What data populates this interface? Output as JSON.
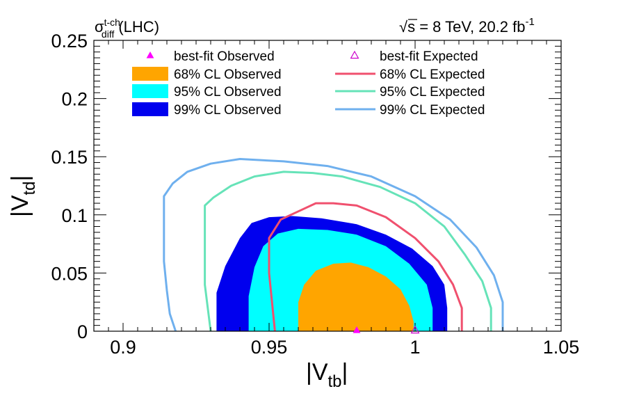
{
  "chart_data": {
    "type": "contour",
    "top_left_label": {
      "sigma": "σ",
      "sup": "t-ch",
      "sub": "diff",
      "rest": "(LHC)"
    },
    "top_right_label": {
      "sqrt": "√",
      "s": "s",
      "rest": " = 8 TeV, 20.2 fb",
      "sup": "-1"
    },
    "xlabel": {
      "main": "|V",
      "sub": "tb",
      "end": "|"
    },
    "ylabel": {
      "main": "|V",
      "sub": "td",
      "end": "|"
    },
    "xlim": [
      0.89,
      1.05
    ],
    "ylim": [
      0,
      0.25
    ],
    "x_ticks": [
      0.9,
      0.95,
      1.0,
      1.05
    ],
    "x_tick_labels": [
      "0.9",
      "0.95",
      "1",
      "1.05"
    ],
    "y_ticks": [
      0,
      0.05,
      0.1,
      0.15,
      0.2,
      0.25
    ],
    "y_tick_labels": [
      "0",
      "0.05",
      "0.1",
      "0.15",
      "0.2",
      "0.25"
    ],
    "grid": false,
    "legend_placement": "top",
    "best_fit_observed": {
      "x": 0.98,
      "y": 0.0
    },
    "best_fit_expected": {
      "x": 1.0,
      "y": 0.0
    },
    "legend": [
      {
        "label": "best-fit Observed",
        "kind": "triangle-filled",
        "color": "#ff00ff"
      },
      {
        "label": "best-fit Expected",
        "kind": "triangle-open",
        "color": "#cc00cc"
      },
      {
        "label": "68% CL Observed",
        "kind": "fill",
        "color": "#ffa500"
      },
      {
        "label": "68% CL Expected",
        "kind": "line",
        "color": "#f0506e"
      },
      {
        "label": "95% CL Observed",
        "kind": "fill",
        "color": "#00ffff"
      },
      {
        "label": "95% CL Expected",
        "kind": "line",
        "color": "#66e3b8"
      },
      {
        "label": "99% CL Observed",
        "kind": "fill",
        "color": "#0000ee"
      },
      {
        "label": "99% CL Expected",
        "kind": "line",
        "color": "#6fb0ee"
      }
    ],
    "regions": [
      {
        "name": "99% CL Observed",
        "color": "#0000ee",
        "points": [
          [
            0.932,
            0
          ],
          [
            0.932,
            0.033
          ],
          [
            0.935,
            0.056
          ],
          [
            0.94,
            0.08
          ],
          [
            0.944,
            0.093
          ],
          [
            0.95,
            0.098
          ],
          [
            0.958,
            0.099
          ],
          [
            0.968,
            0.097
          ],
          [
            0.98,
            0.092
          ],
          [
            0.99,
            0.083
          ],
          [
            0.999,
            0.071
          ],
          [
            1.006,
            0.056
          ],
          [
            1.01,
            0.04
          ],
          [
            1.011,
            0.02
          ],
          [
            1.011,
            0
          ]
        ]
      },
      {
        "name": "95% CL Observed",
        "color": "#00ffff",
        "points": [
          [
            0.943,
            0
          ],
          [
            0.943,
            0.03
          ],
          [
            0.945,
            0.055
          ],
          [
            0.948,
            0.073
          ],
          [
            0.953,
            0.084
          ],
          [
            0.96,
            0.088
          ],
          [
            0.97,
            0.087
          ],
          [
            0.98,
            0.083
          ],
          [
            0.99,
            0.073
          ],
          [
            0.998,
            0.058
          ],
          [
            1.004,
            0.04
          ],
          [
            1.006,
            0.02
          ],
          [
            1.006,
            0
          ]
        ]
      },
      {
        "name": "68% CL Observed",
        "color": "#ffa500",
        "points": [
          [
            0.96,
            0
          ],
          [
            0.96,
            0.025
          ],
          [
            0.962,
            0.04
          ],
          [
            0.966,
            0.052
          ],
          [
            0.972,
            0.058
          ],
          [
            0.978,
            0.059
          ],
          [
            0.984,
            0.055
          ],
          [
            0.99,
            0.047
          ],
          [
            0.995,
            0.036
          ],
          [
            0.998,
            0.022
          ],
          [
            0.9995,
            0.008
          ],
          [
            0.9995,
            0
          ]
        ]
      }
    ],
    "curves": [
      {
        "name": "99% CL Expected",
        "color": "#6fb0ee",
        "points": [
          [
            0.918,
            0
          ],
          [
            0.916,
            0.015
          ],
          [
            0.915,
            0.035
          ],
          [
            0.914,
            0.06
          ],
          [
            0.914,
            0.09
          ],
          [
            0.914,
            0.116
          ],
          [
            0.917,
            0.127
          ],
          [
            0.922,
            0.137
          ],
          [
            0.93,
            0.144
          ],
          [
            0.94,
            0.148
          ],
          [
            0.955,
            0.146
          ],
          [
            0.97,
            0.142
          ],
          [
            0.985,
            0.133
          ],
          [
            1.0,
            0.116
          ],
          [
            1.012,
            0.096
          ],
          [
            1.021,
            0.072
          ],
          [
            1.027,
            0.048
          ],
          [
            1.03,
            0.025
          ],
          [
            1.03,
            0
          ]
        ]
      },
      {
        "name": "95% CL Expected",
        "color": "#66e3b8",
        "points": [
          [
            0.93,
            0
          ],
          [
            0.929,
            0.02
          ],
          [
            0.928,
            0.04
          ],
          [
            0.928,
            0.07
          ],
          [
            0.928,
            0.108
          ],
          [
            0.931,
            0.115
          ],
          [
            0.937,
            0.125
          ],
          [
            0.945,
            0.133
          ],
          [
            0.955,
            0.137
          ],
          [
            0.965,
            0.136
          ],
          [
            0.975,
            0.133
          ],
          [
            0.988,
            0.124
          ],
          [
            1.0,
            0.11
          ],
          [
            1.01,
            0.09
          ],
          [
            1.017,
            0.066
          ],
          [
            1.023,
            0.043
          ],
          [
            1.026,
            0.02
          ],
          [
            1.026,
            0
          ]
        ]
      },
      {
        "name": "68% CL Expected",
        "color": "#f0506e",
        "points": [
          [
            0.952,
            0
          ],
          [
            0.951,
            0.025
          ],
          [
            0.95,
            0.05
          ],
          [
            0.95,
            0.08
          ],
          [
            0.954,
            0.096
          ],
          [
            0.96,
            0.103
          ],
          [
            0.966,
            0.11
          ],
          [
            0.972,
            0.11
          ],
          [
            0.98,
            0.108
          ],
          [
            0.99,
            0.098
          ],
          [
            1.0,
            0.08
          ],
          [
            1.008,
            0.06
          ],
          [
            1.013,
            0.04
          ],
          [
            1.016,
            0.02
          ],
          [
            1.016,
            0
          ]
        ]
      }
    ]
  }
}
